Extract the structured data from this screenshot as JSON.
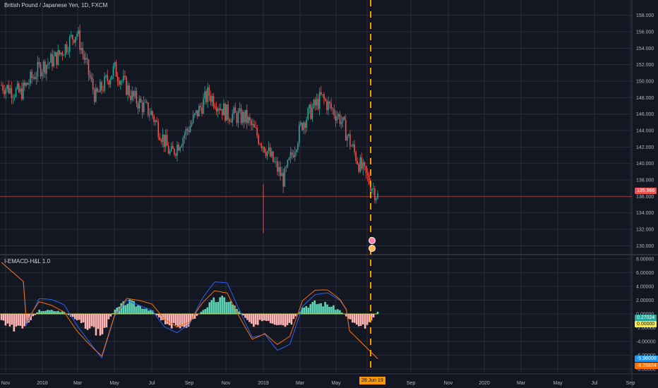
{
  "window": {
    "title": "British Pound / Japanese Yen, 1D, FXCM",
    "indicator_title": "I-EMACD-H&L 1.0"
  },
  "colors": {
    "background": "#131722",
    "grid": "#2a2e39",
    "up": "#26a69a",
    "down": "#ef5350",
    "hist_pos": "#5dd6b6",
    "hist_neg": "#ffb3b3",
    "line_blue": "#2962ff",
    "line_orange": "#ff6d00",
    "marker": "#ff9800"
  },
  "chart_data": [
    {
      "type": "line",
      "title": "British Pound / Japanese Yen, 1D, FXCM",
      "x_tick_labels": [
        "Nov",
        "2018",
        "Mar",
        "May",
        "Jul",
        "Sep",
        "Nov",
        "2019",
        "Mar",
        "May",
        "Jun",
        "Sep",
        "Nov",
        "2020",
        "Mar",
        "May",
        "Jul",
        "Sep"
      ],
      "y_ticks": [
        130,
        132,
        134,
        136,
        138,
        140,
        142,
        144,
        146,
        148,
        150,
        152,
        154,
        156,
        158
      ],
      "ylim": [
        129,
        159
      ],
      "current_price_label": "135.966",
      "current_price": 135.966,
      "cursor_date_label": "28 Jun 19",
      "series": [
        {
          "values_x": [
            "Oct 2017",
            "Nov 2017",
            "Dec 2017",
            "Jan 2018",
            "Feb 2018",
            "Mar 2018",
            "Apr 2018",
            "May 2018",
            "Jun 2018",
            "Jul 2018",
            "Aug 2018",
            "Sep 2018",
            "Oct 2018",
            "Nov 2018",
            "Dec 2018",
            "Jan 2019",
            "Feb 2019",
            "Mar 2019",
            "Apr 2019",
            "May 2019",
            "Jun 2019"
          ],
          "values": [
            149.5,
            148.5,
            151.5,
            153.0,
            156.0,
            148.0,
            151.5,
            148.0,
            146.0,
            141.0,
            144.5,
            148.5,
            146.0,
            145.5,
            142.0,
            138.0,
            145.0,
            148.0,
            145.5,
            140.0,
            136.0
          ]
        }
      ]
    },
    {
      "type": "bar",
      "title": "I-EMACD-H&L 1.0",
      "y_ticks": [
        -8,
        -6,
        -4,
        -2,
        0,
        2,
        4,
        6,
        8
      ],
      "ylim": [
        -8.5,
        8.5
      ],
      "value_labels": [
        "0.27024",
        "0.00000",
        "-5.98000",
        "-6.25824"
      ],
      "series": [
        {
          "name": "",
          "values": [
            -1.0,
            -2.0,
            -1.5,
            0.5,
            0.5,
            0.3,
            -1.0,
            -2.0,
            -3.0,
            0.5,
            1.8,
            1.2,
            0.5,
            -1.2,
            -2.0,
            -1.5,
            0.5,
            2.0,
            2.2,
            0.3,
            -1.5,
            -1.0,
            -2.2,
            -1.8,
            1.0,
            1.6,
            1.4,
            0.5,
            -1.2,
            -1.8,
            0.3
          ]
        }
      ]
    }
  ]
}
